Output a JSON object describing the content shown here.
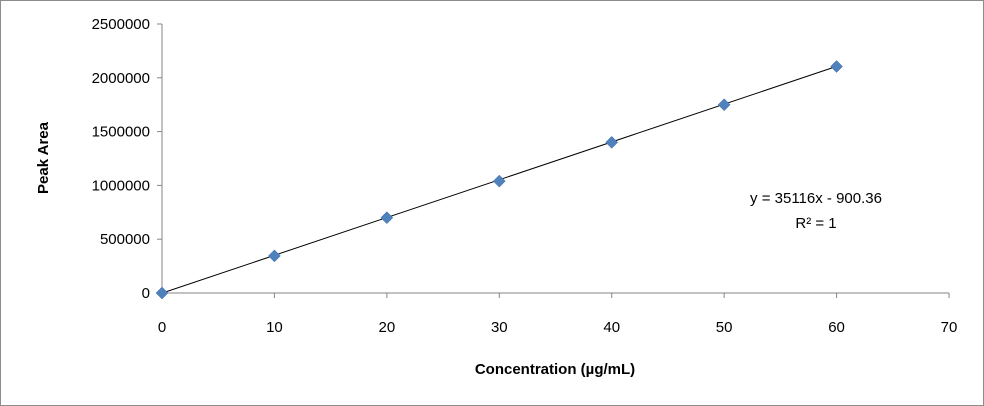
{
  "chart_data": {
    "type": "scatter",
    "title": "",
    "xlabel": "Concentration (µg/mL)",
    "ylabel": "Peak Area",
    "xlim": [
      0,
      70
    ],
    "ylim": [
      0,
      2500000
    ],
    "x_ticks": [
      "0",
      "10",
      "20",
      "30",
      "40",
      "50",
      "60",
      "70"
    ],
    "y_ticks": [
      "0",
      "500000",
      "1000000",
      "1500000",
      "2000000",
      "2500000"
    ],
    "grid": false,
    "legend": "none",
    "series": [
      {
        "x": [
          0,
          10,
          20,
          30,
          40,
          50,
          60
        ],
        "y": [
          0,
          345000,
          700000,
          1040000,
          1400000,
          1750000,
          2105000
        ],
        "marker": "diamond",
        "color": "#4f81bd"
      }
    ],
    "trendline": {
      "type": "linear",
      "slope": 35116,
      "intercept": -900.36,
      "x_range": [
        0,
        60
      ],
      "color": "#000000"
    },
    "annotations": {
      "equation": "y = 35116x - 900.36",
      "r_squared": "R² = 1"
    }
  }
}
